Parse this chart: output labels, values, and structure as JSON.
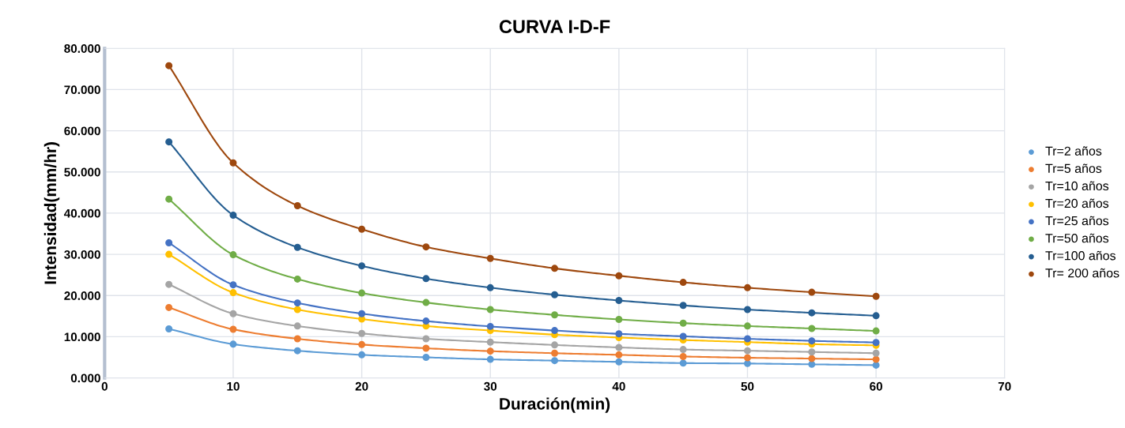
{
  "chart_data": {
    "type": "line",
    "title": "CURVA I-D-F",
    "xlabel": "Duración(min)",
    "ylabel": "Intensidad(mm/hr)",
    "x": [
      5,
      10,
      15,
      20,
      25,
      30,
      35,
      40,
      45,
      50,
      55,
      60
    ],
    "series": [
      {
        "name": "Tr=2 años",
        "color": "#5b9bd5",
        "values": [
          11.9,
          8.2,
          6.6,
          5.6,
          5.0,
          4.5,
          4.2,
          3.9,
          3.6,
          3.5,
          3.3,
          3.1
        ]
      },
      {
        "name": "Tr=5 años",
        "color": "#ed7d31",
        "values": [
          17.1,
          11.8,
          9.5,
          8.1,
          7.2,
          6.5,
          6.0,
          5.6,
          5.2,
          4.9,
          4.7,
          4.5
        ]
      },
      {
        "name": "Tr=10 años",
        "color": "#a5a5a5",
        "values": [
          22.7,
          15.6,
          12.6,
          10.8,
          9.5,
          8.7,
          8.0,
          7.4,
          6.9,
          6.6,
          6.3,
          6.0
        ]
      },
      {
        "name": "Tr=20 años",
        "color": "#ffc000",
        "values": [
          30.0,
          20.7,
          16.6,
          14.3,
          12.6,
          11.5,
          10.5,
          9.8,
          9.2,
          8.7,
          8.2,
          7.9
        ]
      },
      {
        "name": "Tr=25 años",
        "color": "#4472c4",
        "values": [
          32.8,
          22.6,
          18.2,
          15.6,
          13.8,
          12.5,
          11.5,
          10.7,
          10.1,
          9.5,
          9.0,
          8.6
        ]
      },
      {
        "name": "Tr=50 años",
        "color": "#70ad47",
        "values": [
          43.4,
          29.9,
          24.0,
          20.6,
          18.3,
          16.6,
          15.3,
          14.2,
          13.3,
          12.6,
          12.0,
          11.4
        ]
      },
      {
        "name": "Tr=100 años",
        "color": "#255e91",
        "values": [
          57.3,
          39.5,
          31.7,
          27.2,
          24.1,
          21.9,
          20.2,
          18.8,
          17.6,
          16.6,
          15.8,
          15.1
        ]
      },
      {
        "name": "Tr= 200 años",
        "color": "#9e480e",
        "values": [
          75.8,
          52.2,
          41.8,
          36.1,
          31.8,
          29.0,
          26.6,
          24.8,
          23.2,
          21.9,
          20.8,
          19.8
        ]
      }
    ],
    "xlim": [
      0,
      70
    ],
    "xticks": [
      0,
      10,
      20,
      30,
      40,
      50,
      60,
      70
    ],
    "ylim": [
      0,
      80
    ],
    "yticks": [
      {
        "value": 0,
        "label": "0.000"
      },
      {
        "value": 10,
        "label": "10.000"
      },
      {
        "value": 20,
        "label": "20.000"
      },
      {
        "value": 30,
        "label": "30.000"
      },
      {
        "value": 40,
        "label": "40.000"
      },
      {
        "value": 50,
        "label": "50.000"
      },
      {
        "value": 60,
        "label": "60.000"
      },
      {
        "value": 70,
        "label": "70.000"
      },
      {
        "value": 80,
        "label": "80.000"
      }
    ],
    "grid": true,
    "legend": "right",
    "marker": "circle",
    "line_style": "solid"
  }
}
